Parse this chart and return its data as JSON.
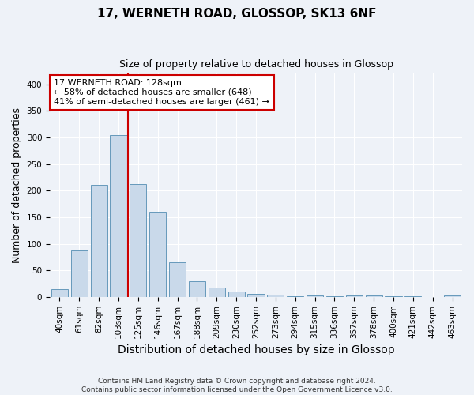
{
  "title": "17, WERNETH ROAD, GLOSSOP, SK13 6NF",
  "subtitle": "Size of property relative to detached houses in Glossop",
  "xlabel": "Distribution of detached houses by size in Glossop",
  "ylabel": "Number of detached properties",
  "footer_line1": "Contains HM Land Registry data © Crown copyright and database right 2024.",
  "footer_line2": "Contains public sector information licensed under the Open Government Licence v3.0.",
  "categories": [
    "40sqm",
    "61sqm",
    "82sqm",
    "103sqm",
    "125sqm",
    "146sqm",
    "167sqm",
    "188sqm",
    "209sqm",
    "230sqm",
    "252sqm",
    "273sqm",
    "294sqm",
    "315sqm",
    "336sqm",
    "357sqm",
    "378sqm",
    "400sqm",
    "421sqm",
    "442sqm",
    "463sqm"
  ],
  "values": [
    15,
    88,
    211,
    305,
    213,
    160,
    65,
    30,
    18,
    10,
    6,
    4,
    1,
    2,
    1,
    3,
    3,
    1,
    1,
    0,
    3
  ],
  "bar_color": "#c9d9ea",
  "bar_edge_color": "#6699bb",
  "vline_x_index": 3,
  "vline_color": "#cc0000",
  "annotation_text": "17 WERNETH ROAD: 128sqm\n← 58% of detached houses are smaller (648)\n41% of semi-detached houses are larger (461) →",
  "annotation_box_color": "#ffffff",
  "annotation_box_edge": "#cc0000",
  "ylim": [
    0,
    420
  ],
  "yticks": [
    0,
    50,
    100,
    150,
    200,
    250,
    300,
    350,
    400
  ],
  "background_color": "#eef2f8",
  "grid_color": "#ffffff",
  "title_fontsize": 11,
  "subtitle_fontsize": 9,
  "axis_label_fontsize": 9,
  "tick_fontsize": 7.5,
  "footer_fontsize": 6.5,
  "annotation_fontsize": 8
}
